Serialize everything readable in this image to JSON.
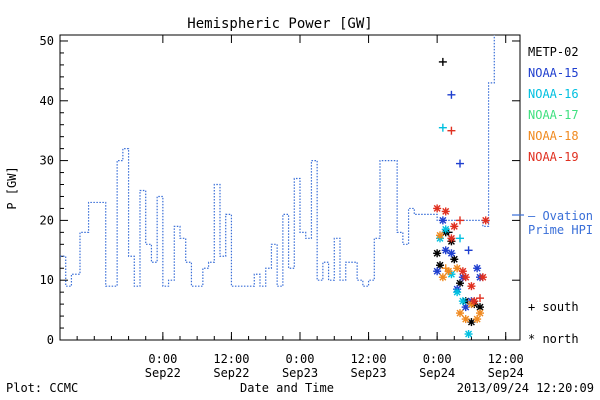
{
  "chart_data": {
    "type": "line",
    "title": "Hemispheric Power [GW]",
    "xlabel": "Date and Time",
    "ylabel": "P [GW]",
    "ylim": [
      0,
      51
    ],
    "xlim_hours_label": "2013-09-21 06:00 to 2013-09-24 14:30",
    "grid": false,
    "y_ticks": [
      0,
      10,
      20,
      30,
      40,
      50
    ],
    "x_ticks": [
      {
        "time": "2013-09-22 00:00",
        "line1": "0:00",
        "line2": "Sep22"
      },
      {
        "time": "2013-09-22 12:00",
        "line1": "12:00",
        "line2": "Sep22"
      },
      {
        "time": "2013-09-23 00:00",
        "line1": "0:00",
        "line2": "Sep23"
      },
      {
        "time": "2013-09-23 12:00",
        "line1": "12:00",
        "line2": "Sep23"
      },
      {
        "time": "2013-09-24 00:00",
        "line1": "0:00",
        "line2": "Sep24"
      },
      {
        "time": "2013-09-24 12:00",
        "line1": "12:00",
        "line2": "Sep24"
      }
    ],
    "series": [
      {
        "name": "Ovation Prime HPI",
        "color": "#3a6fd8",
        "style": "dotted-step",
        "points": [
          [
            "2013-09-21 06:00",
            14
          ],
          [
            "2013-09-21 07:00",
            9
          ],
          [
            "2013-09-21 08:00",
            11
          ],
          [
            "2013-09-21 09:30",
            18
          ],
          [
            "2013-09-21 11:00",
            23
          ],
          [
            "2013-09-21 14:00",
            9
          ],
          [
            "2013-09-21 16:00",
            30
          ],
          [
            "2013-09-21 17:00",
            32
          ],
          [
            "2013-09-21 18:00",
            14
          ],
          [
            "2013-09-21 19:00",
            9
          ],
          [
            "2013-09-21 20:00",
            25
          ],
          [
            "2013-09-21 21:00",
            16
          ],
          [
            "2013-09-21 22:00",
            13
          ],
          [
            "2013-09-21 23:00",
            24
          ],
          [
            "2013-09-22 00:00",
            9
          ],
          [
            "2013-09-22 01:00",
            10
          ],
          [
            "2013-09-22 02:00",
            19
          ],
          [
            "2013-09-22 03:00",
            17
          ],
          [
            "2013-09-22 04:00",
            13
          ],
          [
            "2013-09-22 05:00",
            9
          ],
          [
            "2013-09-22 07:00",
            12
          ],
          [
            "2013-09-22 08:00",
            13
          ],
          [
            "2013-09-22 09:00",
            26
          ],
          [
            "2013-09-22 10:00",
            14
          ],
          [
            "2013-09-22 11:00",
            21
          ],
          [
            "2013-09-22 12:00",
            9
          ],
          [
            "2013-09-22 16:00",
            11
          ],
          [
            "2013-09-22 17:00",
            9
          ],
          [
            "2013-09-22 18:00",
            12
          ],
          [
            "2013-09-22 19:00",
            16
          ],
          [
            "2013-09-22 20:00",
            9
          ],
          [
            "2013-09-22 21:00",
            21
          ],
          [
            "2013-09-22 22:00",
            12
          ],
          [
            "2013-09-22 23:00",
            27
          ],
          [
            "2013-09-23 00:00",
            18
          ],
          [
            "2013-09-23 01:00",
            17
          ],
          [
            "2013-09-23 02:00",
            30
          ],
          [
            "2013-09-23 03:00",
            10
          ],
          [
            "2013-09-23 04:00",
            13
          ],
          [
            "2013-09-23 05:00",
            10
          ],
          [
            "2013-09-23 06:00",
            17
          ],
          [
            "2013-09-23 07:00",
            10
          ],
          [
            "2013-09-23 08:00",
            13
          ],
          [
            "2013-09-23 10:00",
            10
          ],
          [
            "2013-09-23 11:00",
            9
          ],
          [
            "2013-09-23 12:00",
            10
          ],
          [
            "2013-09-23 13:00",
            17
          ],
          [
            "2013-09-23 14:00",
            30
          ],
          [
            "2013-09-23 17:00",
            18
          ],
          [
            "2013-09-23 18:00",
            16
          ],
          [
            "2013-09-23 19:00",
            22
          ],
          [
            "2013-09-23 20:00",
            21
          ],
          [
            "2013-09-24 00:00",
            20
          ],
          [
            "2013-09-24 08:00",
            19
          ],
          [
            "2013-09-24 09:00",
            43
          ],
          [
            "2013-09-24 10:00",
            51
          ]
        ]
      },
      {
        "name": "METP-02",
        "color": "#000000",
        "south": [
          [
            "2013-09-24 01:00",
            46.5
          ],
          [
            "2013-09-24 02:00",
            18
          ]
        ],
        "north": [
          [
            "2013-09-24 00:00",
            14.5
          ],
          [
            "2013-09-24 00:30",
            12.5
          ],
          [
            "2013-09-24 01:30",
            18
          ],
          [
            "2013-09-24 02:30",
            16.5
          ],
          [
            "2013-09-24 03:00",
            13.5
          ],
          [
            "2013-09-24 04:00",
            9.5
          ],
          [
            "2013-09-24 05:00",
            6.5
          ],
          [
            "2013-09-24 06:00",
            3
          ],
          [
            "2013-09-24 06:30",
            6
          ],
          [
            "2013-09-24 07:30",
            5.5
          ]
        ]
      },
      {
        "name": "NOAA-15",
        "color": "#1f3fcf",
        "south": [
          [
            "2013-09-24 02:30",
            41
          ],
          [
            "2013-09-24 04:00",
            29.5
          ],
          [
            "2013-09-24 05:30",
            15
          ]
        ],
        "north": [
          [
            "2013-09-24 00:00",
            11.5
          ],
          [
            "2013-09-24 01:00",
            20
          ],
          [
            "2013-09-24 01:30",
            15
          ],
          [
            "2013-09-24 02:30",
            14.5
          ],
          [
            "2013-09-24 03:30",
            8.5
          ],
          [
            "2013-09-24 04:30",
            10.5
          ],
          [
            "2013-09-24 05:00",
            5.5
          ],
          [
            "2013-09-24 06:00",
            6.5
          ],
          [
            "2013-09-24 07:00",
            12
          ],
          [
            "2013-09-24 07:30",
            10.5
          ]
        ]
      },
      {
        "name": "NOAA-16",
        "color": "#00c0e0",
        "south": [
          [
            "2013-09-24 01:00",
            35.5
          ],
          [
            "2013-09-24 04:00",
            17
          ]
        ],
        "north": [
          [
            "2013-09-24 00:30",
            17
          ],
          [
            "2013-09-24 01:30",
            18.5
          ],
          [
            "2013-09-24 02:30",
            11
          ],
          [
            "2013-09-24 03:30",
            8
          ],
          [
            "2013-09-24 04:30",
            6.5
          ],
          [
            "2013-09-24 05:30",
            1
          ]
        ]
      },
      {
        "name": "NOAA-17",
        "color": "#40e080",
        "south": [],
        "north": []
      },
      {
        "name": "NOAA-18",
        "color": "#f08a20",
        "south": [
          [
            "2013-09-24 01:30",
            12
          ]
        ],
        "north": [
          [
            "2013-09-24 00:30",
            17.5
          ],
          [
            "2013-09-24 01:00",
            10.5
          ],
          [
            "2013-09-24 02:00",
            11.5
          ],
          [
            "2013-09-24 03:30",
            12
          ],
          [
            "2013-09-24 04:00",
            4.5
          ],
          [
            "2013-09-24 05:00",
            3.5
          ],
          [
            "2013-09-24 06:00",
            6
          ],
          [
            "2013-09-24 07:00",
            3.5
          ],
          [
            "2013-09-24 07:30",
            4.5
          ]
        ]
      },
      {
        "name": "NOAA-19",
        "color": "#e03020",
        "south": [
          [
            "2013-09-24 02:30",
            35
          ],
          [
            "2013-09-24 04:00",
            20
          ],
          [
            "2013-09-24 07:30",
            7
          ]
        ],
        "north": [
          [
            "2013-09-24 00:00",
            22
          ],
          [
            "2013-09-24 01:30",
            21.5
          ],
          [
            "2013-09-24 02:30",
            17
          ],
          [
            "2013-09-24 03:00",
            19
          ],
          [
            "2013-09-24 04:30",
            11.5
          ],
          [
            "2013-09-24 05:00",
            10.5
          ],
          [
            "2013-09-24 06:00",
            9
          ],
          [
            "2013-09-24 06:30",
            6.5
          ],
          [
            "2013-09-24 08:00",
            10.5
          ],
          [
            "2013-09-24 08:30",
            20
          ]
        ]
      }
    ]
  },
  "legend": {
    "items": [
      {
        "label": "METP-02",
        "color": "#000000"
      },
      {
        "label": "NOAA-15",
        "color": "#1f3fcf"
      },
      {
        "label": "NOAA-16",
        "color": "#00c0e0"
      },
      {
        "label": "NOAA-17",
        "color": "#40e080"
      },
      {
        "label": "NOAA-18",
        "color": "#f08a20"
      },
      {
        "label": "NOAA-19",
        "color": "#e03020"
      }
    ],
    "ovation_line1": "— Ovation",
    "ovation_line2": "Prime HPI",
    "ovation_color": "#3a6fd8",
    "south_label": "+ south",
    "north_label": "* north"
  },
  "footer": {
    "left": "Plot: CCMC",
    "right": "2013/09/24 12:20:09"
  }
}
